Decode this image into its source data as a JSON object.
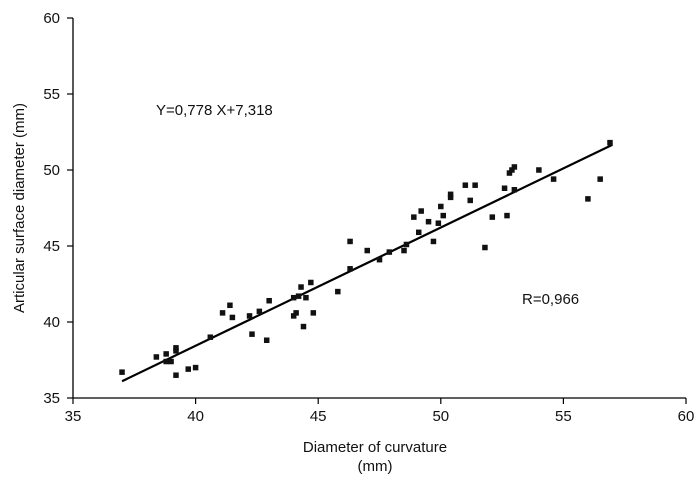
{
  "chart_data": {
    "type": "scatter",
    "xlabel_line1": "Diameter of curvature",
    "xlabel_line2": "(mm)",
    "ylabel": "Articular surface diameter (mm)",
    "xlim": [
      35,
      60
    ],
    "ylim": [
      35,
      60
    ],
    "xticks": [
      35,
      40,
      45,
      50,
      55,
      60
    ],
    "yticks": [
      35,
      40,
      45,
      50,
      55,
      60
    ],
    "grid": false,
    "annotations": {
      "equation": "Y=0,778 X+7,318",
      "r_value": "R=0,966"
    },
    "regression": {
      "slope": 0.778,
      "intercept": 7.318,
      "x_start": 37.0,
      "x_end": 57.0
    },
    "points": [
      {
        "x": 37.0,
        "y": 36.7
      },
      {
        "x": 38.4,
        "y": 37.7
      },
      {
        "x": 38.8,
        "y": 37.9
      },
      {
        "x": 38.8,
        "y": 37.4
      },
      {
        "x": 39.0,
        "y": 37.4
      },
      {
        "x": 39.2,
        "y": 38.1
      },
      {
        "x": 39.2,
        "y": 38.3
      },
      {
        "x": 39.2,
        "y": 36.5
      },
      {
        "x": 39.7,
        "y": 36.9
      },
      {
        "x": 40.0,
        "y": 37.0
      },
      {
        "x": 40.6,
        "y": 39.0
      },
      {
        "x": 41.1,
        "y": 40.6
      },
      {
        "x": 41.4,
        "y": 41.1
      },
      {
        "x": 41.5,
        "y": 40.3
      },
      {
        "x": 42.2,
        "y": 40.4
      },
      {
        "x": 42.3,
        "y": 39.2
      },
      {
        "x": 42.6,
        "y": 40.7
      },
      {
        "x": 42.9,
        "y": 38.8
      },
      {
        "x": 43.0,
        "y": 41.4
      },
      {
        "x": 44.0,
        "y": 40.4
      },
      {
        "x": 44.0,
        "y": 41.6
      },
      {
        "x": 44.1,
        "y": 40.6
      },
      {
        "x": 44.2,
        "y": 41.7
      },
      {
        "x": 44.3,
        "y": 42.3
      },
      {
        "x": 44.4,
        "y": 39.7
      },
      {
        "x": 44.5,
        "y": 41.6
      },
      {
        "x": 44.7,
        "y": 42.6
      },
      {
        "x": 44.8,
        "y": 40.6
      },
      {
        "x": 45.8,
        "y": 42.0
      },
      {
        "x": 46.3,
        "y": 45.3
      },
      {
        "x": 46.3,
        "y": 43.5
      },
      {
        "x": 47.0,
        "y": 44.7
      },
      {
        "x": 47.5,
        "y": 44.1
      },
      {
        "x": 47.9,
        "y": 44.6
      },
      {
        "x": 48.5,
        "y": 44.7
      },
      {
        "x": 48.6,
        "y": 45.1
      },
      {
        "x": 48.9,
        "y": 46.9
      },
      {
        "x": 49.1,
        "y": 45.9
      },
      {
        "x": 49.2,
        "y": 47.3
      },
      {
        "x": 49.5,
        "y": 46.6
      },
      {
        "x": 49.7,
        "y": 45.3
      },
      {
        "x": 49.9,
        "y": 46.5
      },
      {
        "x": 50.0,
        "y": 47.6
      },
      {
        "x": 50.1,
        "y": 47.0
      },
      {
        "x": 50.4,
        "y": 48.2
      },
      {
        "x": 50.4,
        "y": 48.4
      },
      {
        "x": 51.0,
        "y": 49.0
      },
      {
        "x": 51.2,
        "y": 48.0
      },
      {
        "x": 51.4,
        "y": 49.0
      },
      {
        "x": 51.8,
        "y": 44.9
      },
      {
        "x": 52.1,
        "y": 46.9
      },
      {
        "x": 52.6,
        "y": 48.8
      },
      {
        "x": 52.7,
        "y": 47.0
      },
      {
        "x": 52.8,
        "y": 49.8
      },
      {
        "x": 52.9,
        "y": 50.0
      },
      {
        "x": 53.0,
        "y": 50.2
      },
      {
        "x": 53.0,
        "y": 48.7
      },
      {
        "x": 54.0,
        "y": 50.0
      },
      {
        "x": 54.6,
        "y": 49.4
      },
      {
        "x": 56.0,
        "y": 48.1
      },
      {
        "x": 56.5,
        "y": 49.4
      },
      {
        "x": 56.9,
        "y": 51.8
      }
    ]
  }
}
